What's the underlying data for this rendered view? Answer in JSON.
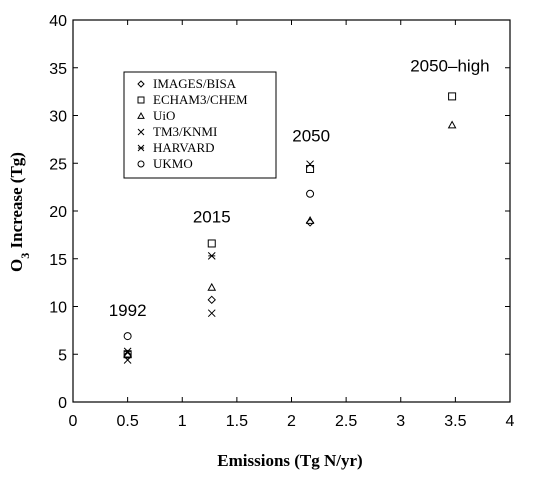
{
  "chart_data": {
    "type": "scatter",
    "xlabel": "Emissions (Tg N/yr)",
    "ylabel_main": "O",
    "ylabel_sub": "3",
    "ylabel_rest": " Increase (Tg)",
    "xlim": [
      0,
      4
    ],
    "ylim": [
      0,
      40
    ],
    "xticks": [
      0,
      0.5,
      1,
      1.5,
      2,
      2.5,
      3,
      3.5,
      4
    ],
    "xtick_labels": [
      "0",
      "0.5",
      "1",
      "1.5",
      "2",
      "2.5",
      "3",
      "3.5",
      "4"
    ],
    "yticks": [
      0,
      5,
      10,
      15,
      20,
      25,
      30,
      35,
      40
    ],
    "ytick_labels": [
      "0",
      "5",
      "10",
      "15",
      "20",
      "25",
      "30",
      "35",
      "40"
    ],
    "legend_placement": "upper-left",
    "annotations": [
      {
        "text": "1992",
        "x": 0.5,
        "y": 9.0
      },
      {
        "text": "2015",
        "x": 1.27,
        "y": 18.8
      },
      {
        "text": "2050",
        "x": 2.18,
        "y": 27.3
      },
      {
        "text": "2050–high",
        "x": 3.45,
        "y": 34.6
      }
    ],
    "series": [
      {
        "name": "IMAGES/BISA",
        "marker": "diamond",
        "points": [
          [
            0.5,
            4.8
          ],
          [
            1.27,
            10.7
          ],
          [
            2.17,
            18.8
          ]
        ]
      },
      {
        "name": "ECHAM3/CHEM",
        "marker": "square",
        "points": [
          [
            0.5,
            5.0
          ],
          [
            1.27,
            16.6
          ],
          [
            2.17,
            24.4
          ],
          [
            3.47,
            32.0
          ]
        ]
      },
      {
        "name": "UiO",
        "marker": "triangle",
        "points": [
          [
            0.5,
            5.0
          ],
          [
            1.27,
            12.0
          ],
          [
            2.17,
            19.0
          ],
          [
            3.47,
            29.0
          ]
        ]
      },
      {
        "name": "TM3/KNMI",
        "marker": "x",
        "points": [
          [
            0.5,
            4.4
          ],
          [
            1.27,
            9.3
          ],
          [
            2.17,
            24.9
          ]
        ]
      },
      {
        "name": "HARVARD",
        "marker": "asterisk",
        "points": [
          [
            0.5,
            5.3
          ],
          [
            1.27,
            15.3
          ]
        ]
      },
      {
        "name": "UKMO",
        "marker": "circle",
        "points": [
          [
            0.5,
            6.9
          ],
          [
            2.17,
            21.8
          ]
        ]
      }
    ]
  }
}
